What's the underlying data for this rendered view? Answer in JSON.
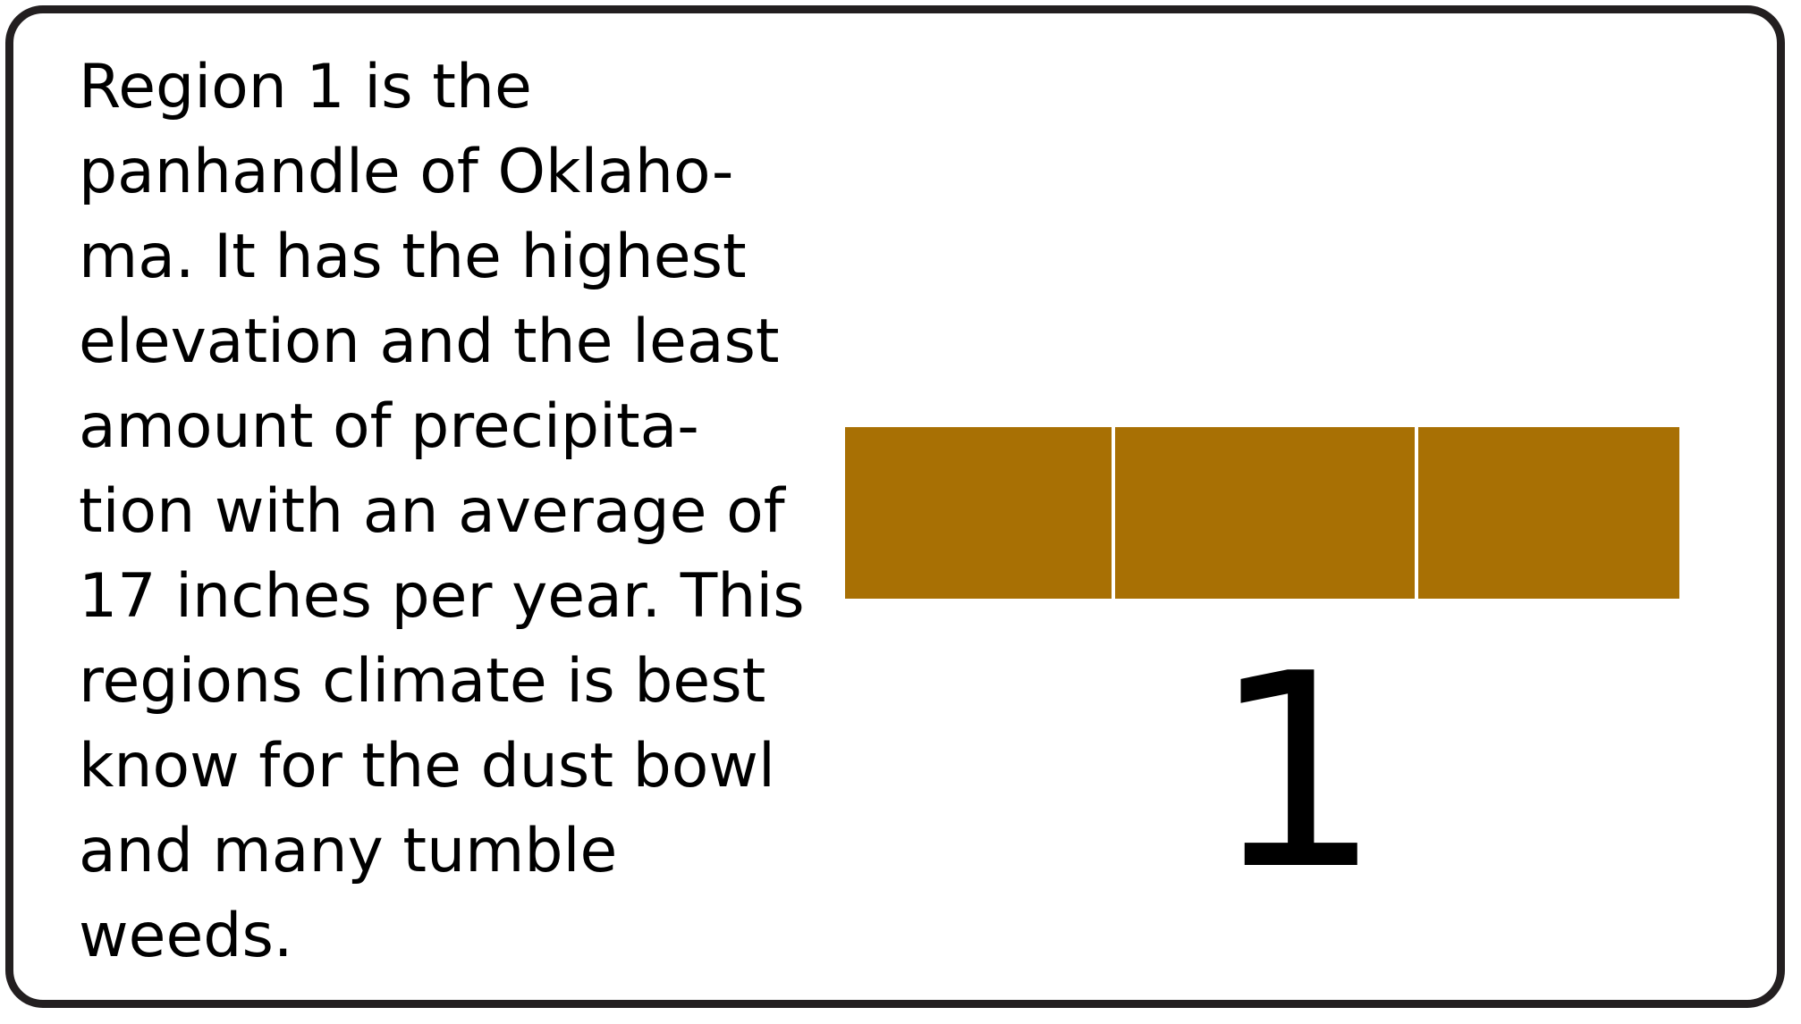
{
  "description": {
    "lines": [
      "Region 1 is the",
      "panhandle of Oklaho-",
      "ma. It has the highest",
      "elevation and the least",
      "amount of precipita-",
      "tion with an average of",
      "17 inches per year. This",
      "regions climate is best",
      "know for the dust bowl",
      "and many tumble",
      "weeds."
    ]
  },
  "banner": {
    "color": "#a87004",
    "divider_color": "#ffffff",
    "panel_count": 3
  },
  "region": {
    "number": "1"
  },
  "colors": {
    "border": "#231f20",
    "text": "#000000",
    "background": "#ffffff"
  }
}
